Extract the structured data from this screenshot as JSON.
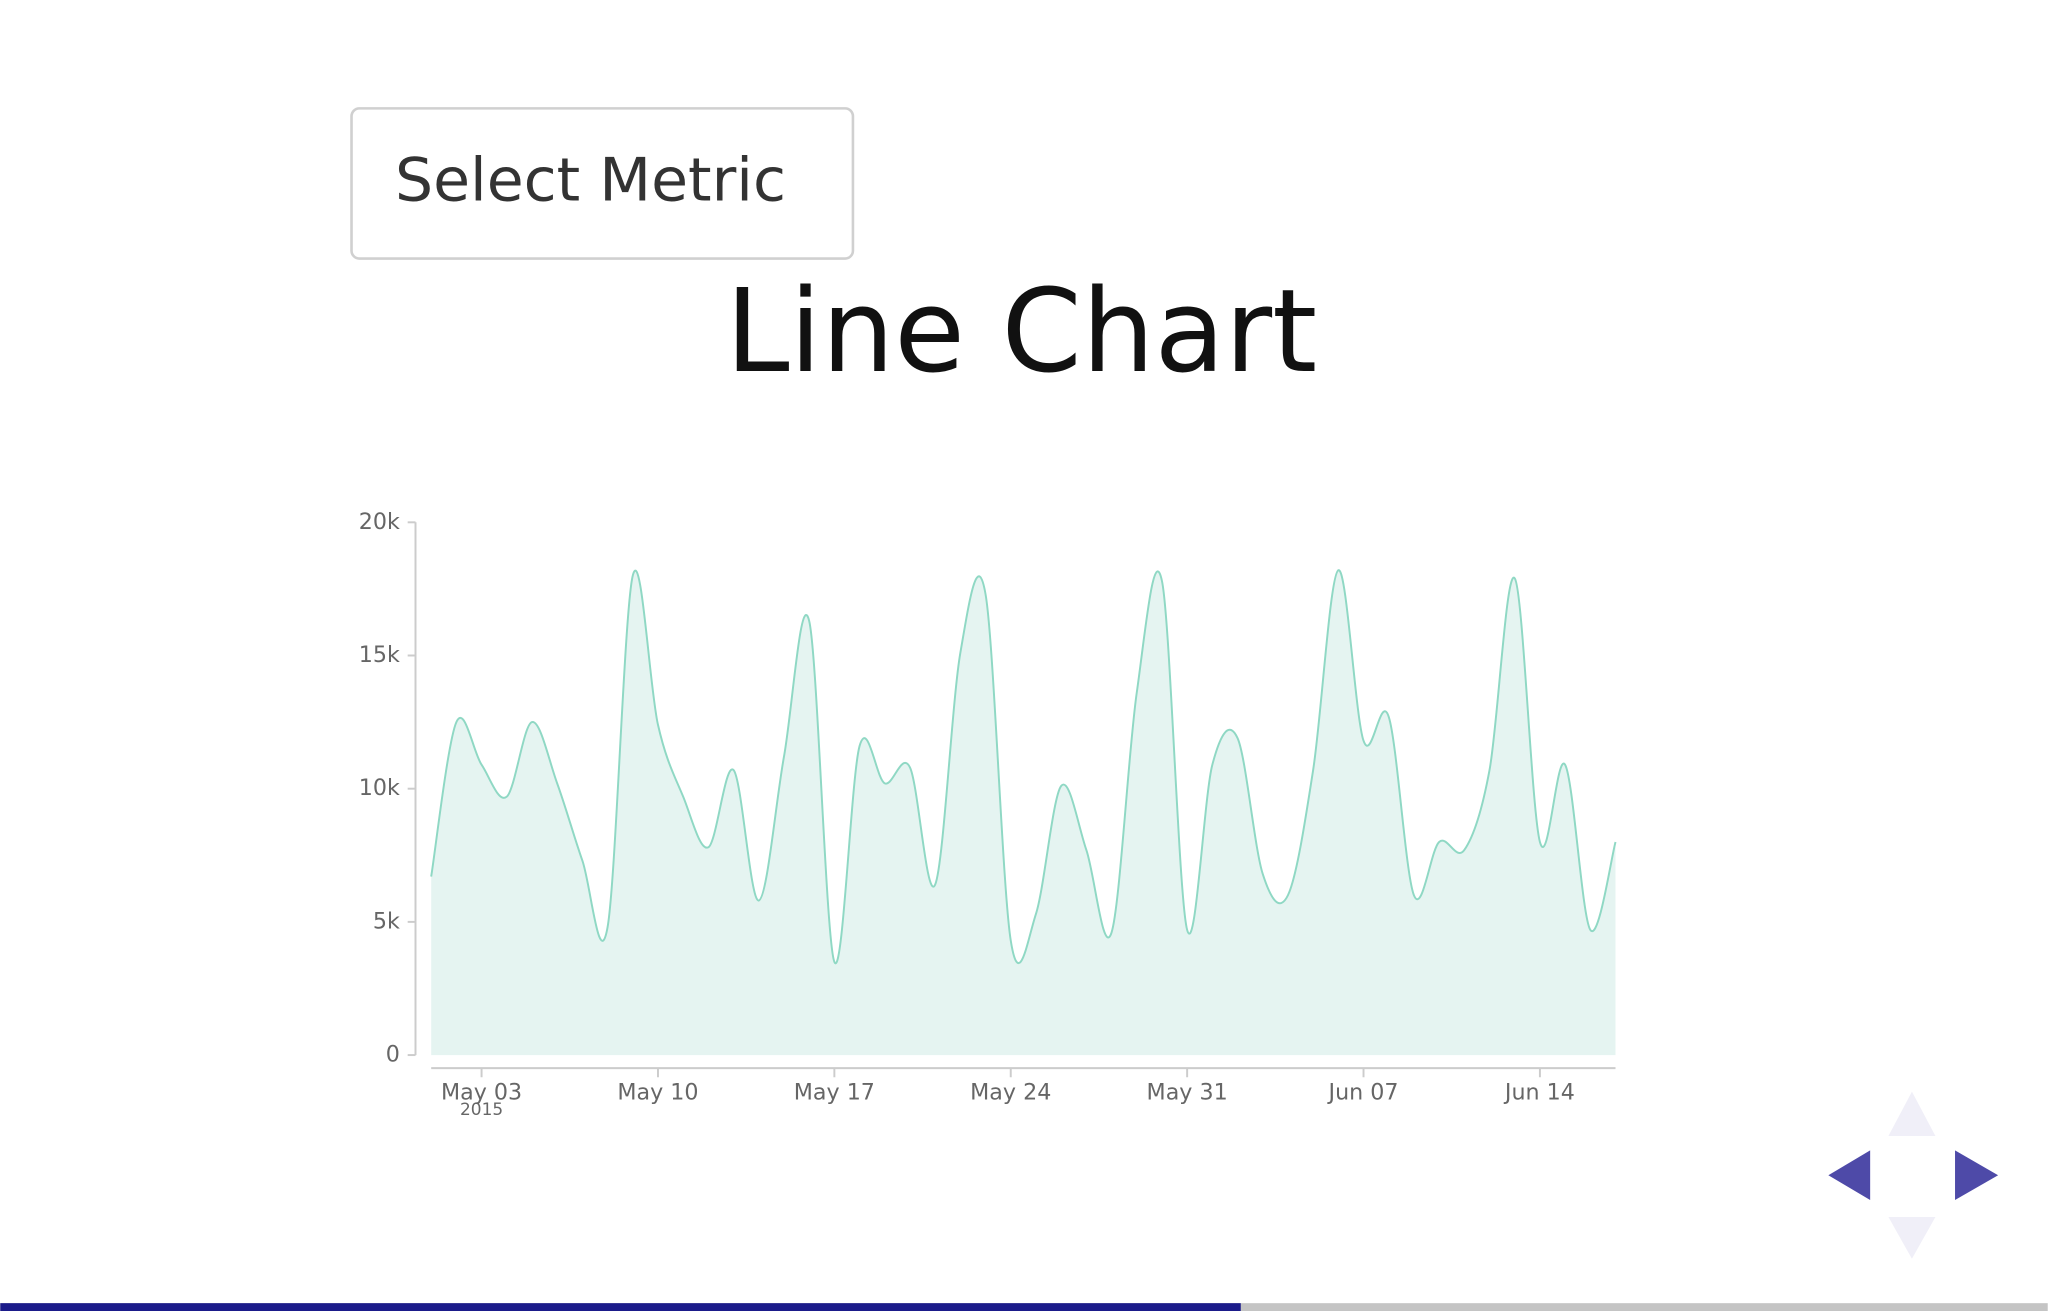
{
  "button": {
    "label": "Select Metric"
  },
  "chart_data": {
    "type": "area",
    "title": "Line Chart",
    "x": [
      "2015-05-01",
      "2015-05-02",
      "2015-05-03",
      "2015-05-04",
      "2015-05-05",
      "2015-05-06",
      "2015-05-07",
      "2015-05-08",
      "2015-05-09",
      "2015-05-10",
      "2015-05-11",
      "2015-05-12",
      "2015-05-13",
      "2015-05-14",
      "2015-05-15",
      "2015-05-16",
      "2015-05-17",
      "2015-05-18",
      "2015-05-19",
      "2015-05-20",
      "2015-05-21",
      "2015-05-22",
      "2015-05-23",
      "2015-05-24",
      "2015-05-25",
      "2015-05-26",
      "2015-05-27",
      "2015-05-28",
      "2015-05-29",
      "2015-05-30",
      "2015-05-31",
      "2015-06-01",
      "2015-06-02",
      "2015-06-03",
      "2015-06-04",
      "2015-06-05",
      "2015-06-06",
      "2015-06-07",
      "2015-06-08",
      "2015-06-09",
      "2015-06-10",
      "2015-06-11",
      "2015-06-12",
      "2015-06-13",
      "2015-06-14",
      "2015-06-15",
      "2015-06-16",
      "2015-06-17"
    ],
    "values": [
      6700,
      12500,
      10900,
      9700,
      12500,
      10200,
      7300,
      4800,
      18000,
      12400,
      9700,
      7800,
      10700,
      5800,
      11200,
      16300,
      3500,
      11600,
      10200,
      10800,
      6400,
      15100,
      17300,
      4300,
      5300,
      10100,
      7700,
      4600,
      13600,
      17800,
      4700,
      10900,
      11900,
      6800,
      6000,
      10700,
      18200,
      11800,
      12700,
      6000,
      8000,
      7700,
      10700,
      17900,
      8000,
      10900,
      4700,
      8000
    ],
    "line_color": "#8fd8c4",
    "fill_color": "#e5f4f1",
    "xlim": [
      "2015-05-01",
      "2015-06-17"
    ],
    "xticks": [
      {
        "value": "2015-05-03",
        "label": "May 03"
      },
      {
        "value": "2015-05-10",
        "label": "May 10"
      },
      {
        "value": "2015-05-17",
        "label": "May 17"
      },
      {
        "value": "2015-05-24",
        "label": "May 24"
      },
      {
        "value": "2015-05-31",
        "label": "May 31"
      },
      {
        "value": "2015-06-07",
        "label": "Jun 07"
      },
      {
        "value": "2015-06-14",
        "label": "Jun 14"
      }
    ],
    "x_year_label": "2015",
    "ylim": [
      0,
      20000
    ],
    "yticks": [
      0,
      {
        "value": 5000,
        "label": "5k"
      },
      {
        "value": 10000,
        "label": "10k"
      },
      {
        "value": 15000,
        "label": "15k"
      },
      {
        "value": 20000,
        "label": "20k"
      }
    ]
  }
}
